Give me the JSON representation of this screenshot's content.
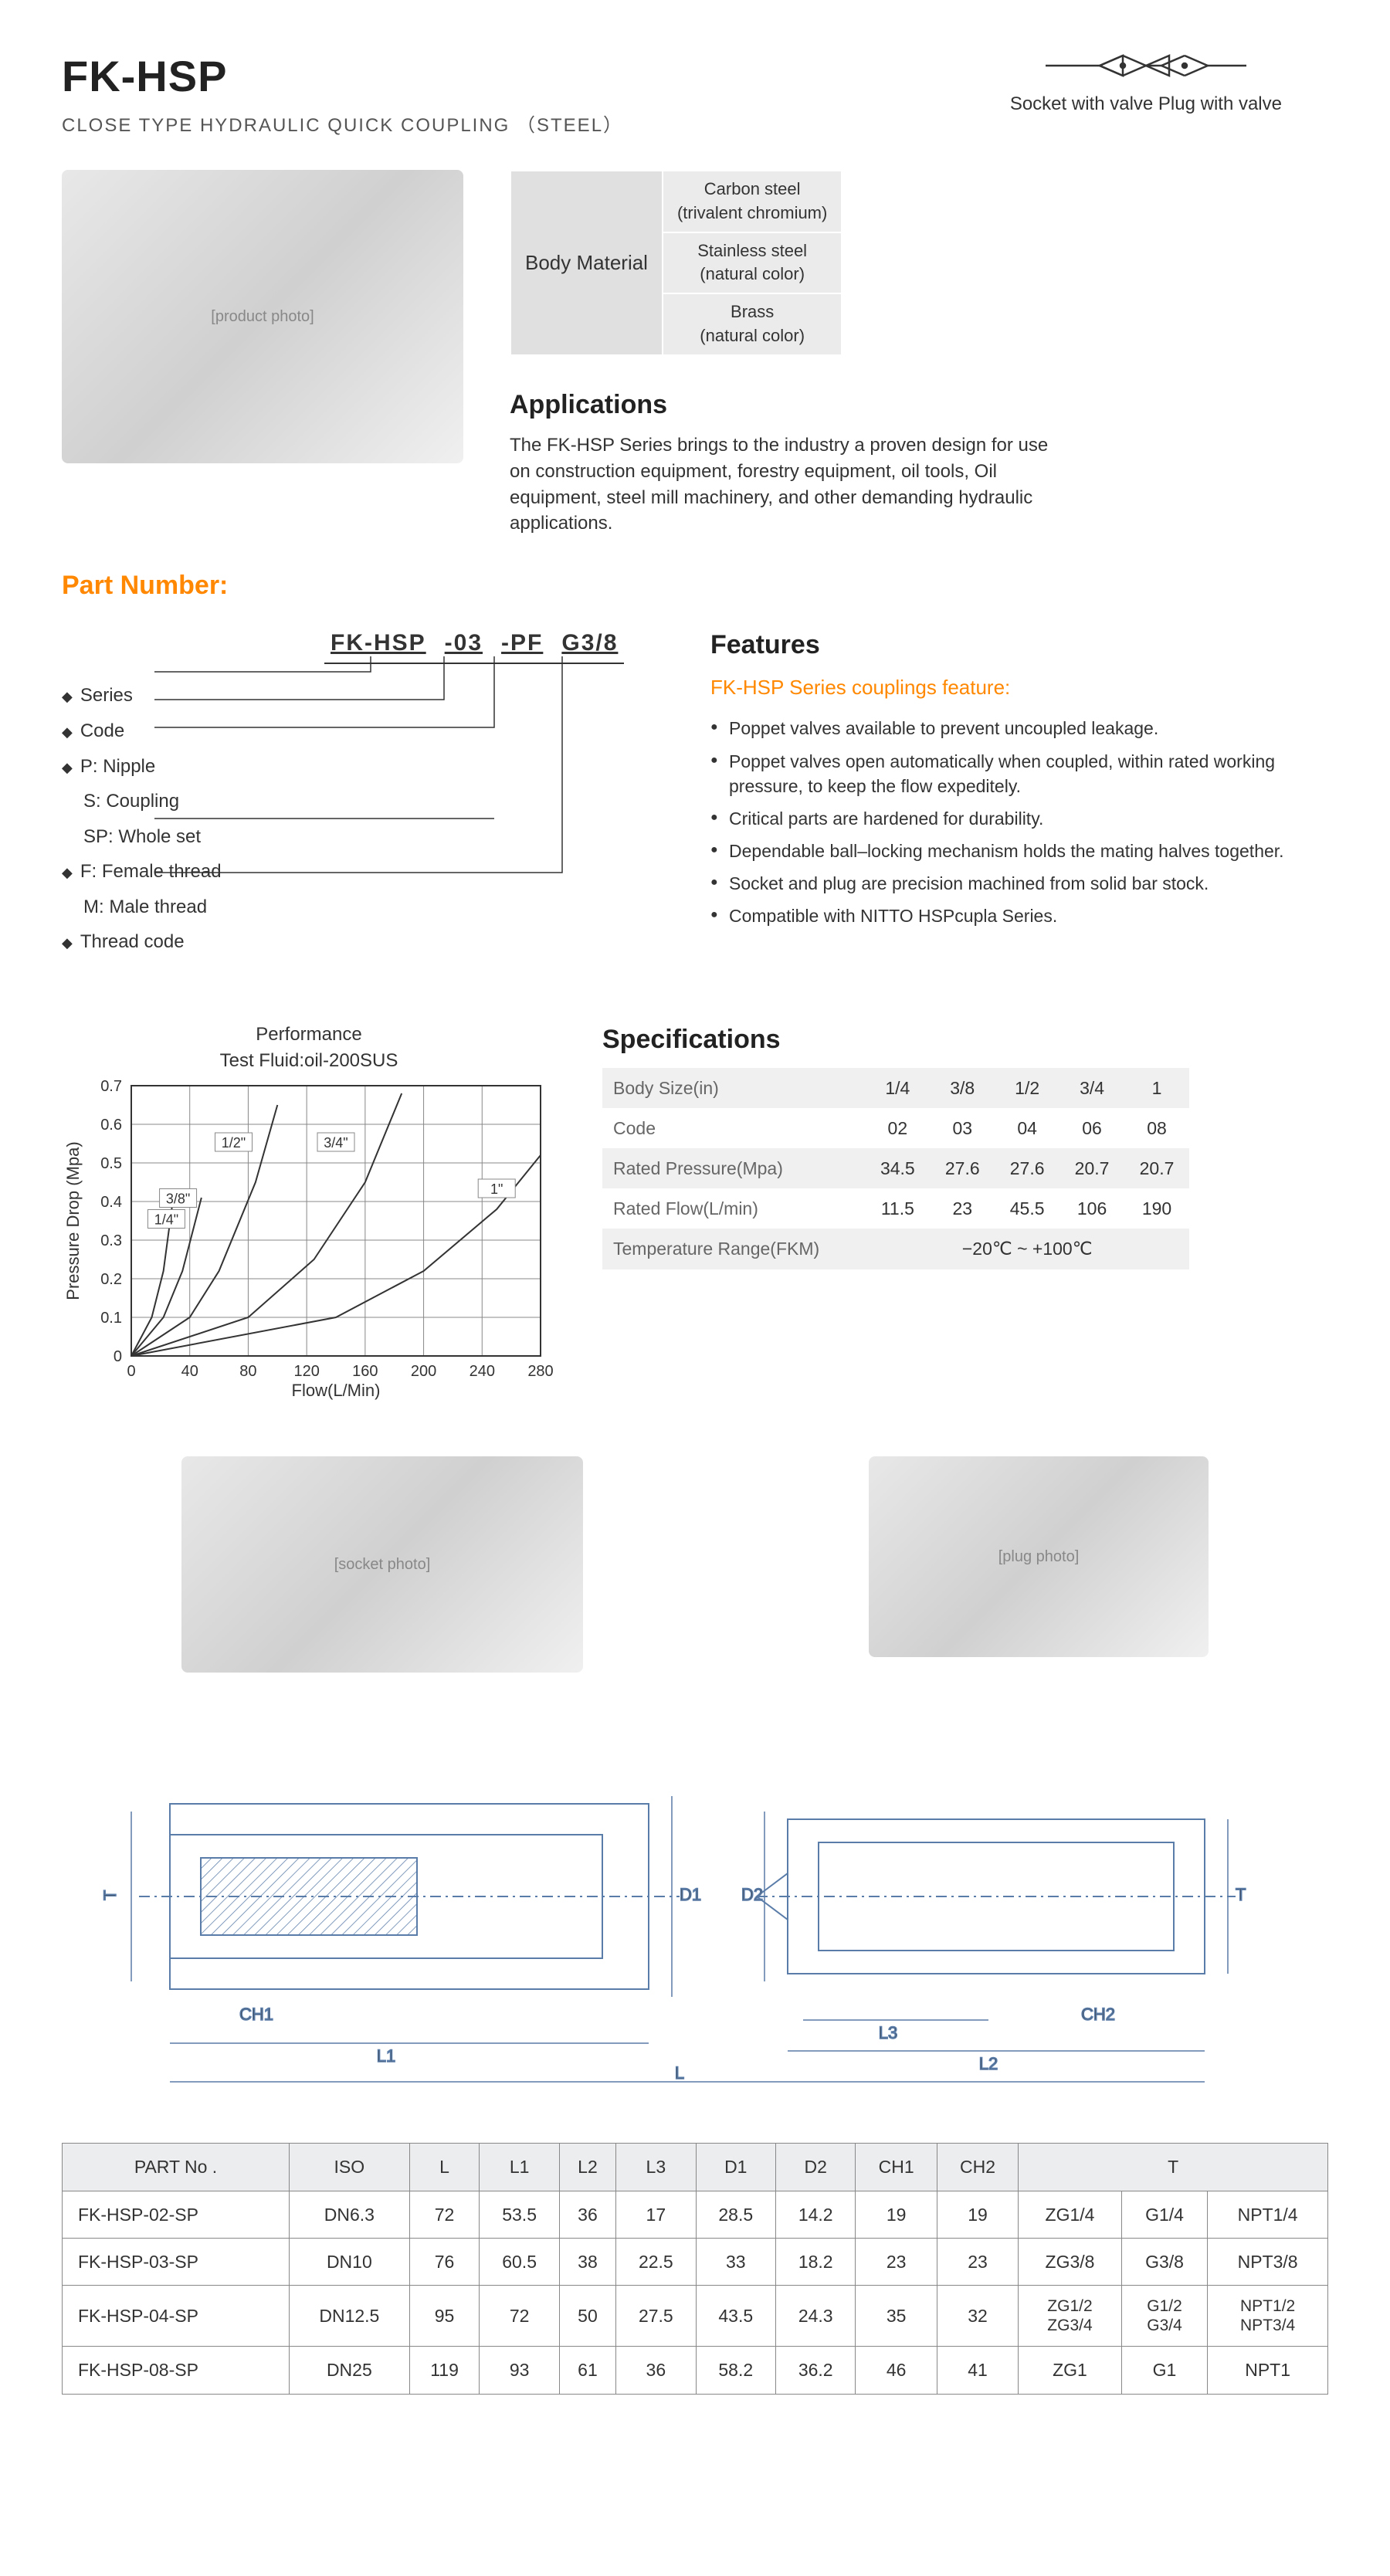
{
  "header": {
    "title": "FK-HSP",
    "subtitle": "CLOSE TYPE HYDRAULIC QUICK COUPLING （STEEL）",
    "symbol_caption": "Socket with valve Plug with valve"
  },
  "material": {
    "label": "Body Material",
    "rows": [
      "Carbon steel\n(trivalent chromium)",
      "Stainless steel\n(natural color)",
      "Brass\n(natural color)"
    ]
  },
  "applications": {
    "heading": "Applications",
    "text": "The FK-HSP Series brings to the industry a proven design for use on construction equipment, forestry equipment, oil tools, Oil equipment, steel mill machinery, and other demanding hydraulic applications."
  },
  "part_number": {
    "heading": "Part  Number:",
    "example": [
      "FK-HSP",
      "-03",
      "-PF",
      "G3/8"
    ],
    "legend": [
      "Series",
      "Code",
      "P: Nipple",
      "S: Coupling",
      "SP: Whole set",
      "F: Female thread",
      "M: Male thread",
      "Thread code"
    ]
  },
  "features": {
    "heading": "Features",
    "subheading": "FK-HSP Series couplings feature:",
    "items": [
      "Poppet valves available to prevent uncoupled leakage.",
      "Poppet valves open automatically when coupled, within rated working pressure, to keep the flow expeditely.",
      "Critical parts are hardened for durability.",
      "Dependable ball–locking mechanism holds the mating halves together.",
      "Socket and plug are precision machined from solid bar stock.",
      "Compatible with NITTO HSPcupla Series."
    ]
  },
  "chart": {
    "title": "Performance",
    "subtitle": "Test Fluid:oil-200SUS",
    "xlabel": "Flow(L/Min)",
    "ylabel": "Pressure Drop (Mpa)",
    "xticks": [
      0,
      40,
      80,
      120,
      160,
      200,
      240,
      280
    ],
    "yticks": [
      0,
      0.1,
      0.2,
      0.3,
      0.4,
      0.5,
      0.6,
      0.7
    ],
    "grid_color": "#888",
    "line_color": "#333",
    "curves": [
      {
        "label": "1/4\"",
        "points": [
          [
            0,
            0
          ],
          [
            14,
            0.1
          ],
          [
            22,
            0.22
          ],
          [
            28,
            0.39
          ]
        ]
      },
      {
        "label": "3/8\"",
        "points": [
          [
            0,
            0
          ],
          [
            22,
            0.1
          ],
          [
            35,
            0.22
          ],
          [
            48,
            0.41
          ]
        ]
      },
      {
        "label": "1/2\"",
        "points": [
          [
            0,
            0
          ],
          [
            40,
            0.1
          ],
          [
            60,
            0.22
          ],
          [
            85,
            0.45
          ],
          [
            100,
            0.65
          ]
        ]
      },
      {
        "label": "3/4\"",
        "points": [
          [
            0,
            0
          ],
          [
            80,
            0.1
          ],
          [
            125,
            0.25
          ],
          [
            160,
            0.45
          ],
          [
            185,
            0.68
          ]
        ]
      },
      {
        "label": "1\"",
        "points": [
          [
            0,
            0
          ],
          [
            140,
            0.1
          ],
          [
            200,
            0.22
          ],
          [
            250,
            0.38
          ],
          [
            280,
            0.52
          ]
        ]
      }
    ],
    "label_positions": {
      "1/4\"": [
        24,
        0.351
      ],
      "3/8\"": [
        32,
        0.405
      ],
      "1/2\"": [
        70,
        0.55
      ],
      "3/4\"": [
        140,
        0.55
      ],
      "1\"": [
        250,
        0.43
      ]
    }
  },
  "specs": {
    "heading": "Specifications",
    "rows": [
      [
        "Body Size(in)",
        "1/4",
        "3/8",
        "1/2",
        "3/4",
        "1"
      ],
      [
        "Code",
        "02",
        "03",
        "04",
        "06",
        "08"
      ],
      [
        "Rated Pressure(Mpa)",
        "34.5",
        "27.6",
        "27.6",
        "20.7",
        "20.7"
      ],
      [
        "Rated Flow(L/min)",
        "11.5",
        "23",
        "45.5",
        "106",
        "190"
      ],
      [
        "Temperature Range(FKM)",
        "−20℃ ~ +100℃"
      ]
    ]
  },
  "drawing_labels": [
    "T",
    "D1",
    "D2",
    "T",
    "CH1",
    "L1",
    "L3",
    "CH2",
    "L2",
    "L"
  ],
  "dims": {
    "columns": [
      "PART No .",
      "ISO",
      "L",
      "L1",
      "L2",
      "L3",
      "D1",
      "D2",
      "CH1",
      "CH2",
      "T"
    ],
    "rows": [
      [
        "FK-HSP-02-SP",
        "DN6.3",
        "72",
        "53.5",
        "36",
        "17",
        "28.5",
        "14.2",
        "19",
        "19",
        "ZG1/4",
        "G1/4",
        "NPT1/4"
      ],
      [
        "FK-HSP-03-SP",
        "DN10",
        "76",
        "60.5",
        "38",
        "22.5",
        "33",
        "18.2",
        "23",
        "23",
        "ZG3/8",
        "G3/8",
        "NPT3/8"
      ],
      [
        "FK-HSP-04-SP",
        "DN12.5",
        "95",
        "72",
        "50",
        "27.5",
        "43.5",
        "24.3",
        "35",
        "32",
        "ZG1/2\nZG3/4",
        "G1/2\nG3/4",
        "NPT1/2\nNPT3/4"
      ],
      [
        "FK-HSP-08-SP",
        "DN25",
        "119",
        "93",
        "61",
        "36",
        "58.2",
        "36.2",
        "46",
        "41",
        "ZG1",
        "G1",
        "NPT1"
      ]
    ]
  },
  "colors": {
    "orange": "#ff8800",
    "text": "#333",
    "grid_even": "#f0f0f0"
  }
}
